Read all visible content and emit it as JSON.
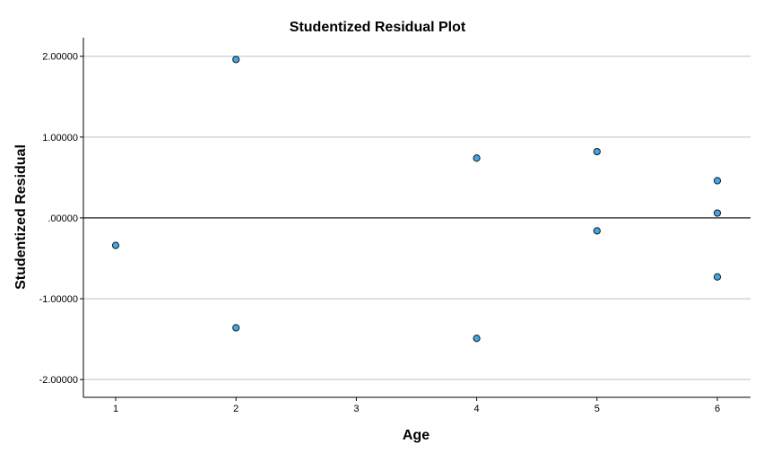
{
  "chart_data": {
    "type": "scatter",
    "title": "Studentized Residual Plot",
    "xlabel": "Age",
    "ylabel": "Studentized Residual",
    "x_categories": [
      "1",
      "2",
      "3",
      "4",
      "5",
      "6"
    ],
    "y_ticks": [
      {
        "value": 2,
        "label": "2.00000"
      },
      {
        "value": 1,
        "label": "1.00000"
      },
      {
        "value": 0,
        "label": ".00000"
      },
      {
        "value": -1,
        "label": "-1.00000"
      },
      {
        "value": -2,
        "label": "-2.00000"
      }
    ],
    "ylim": [
      -2.22,
      2.23
    ],
    "reference_line_y": 0,
    "grid": "horizontal",
    "marker_fill": "#3fa6e8",
    "marker_stroke": "#1a1a1a",
    "points": [
      {
        "x": "1",
        "y": -0.34
      },
      {
        "x": "2",
        "y": 1.96
      },
      {
        "x": "2",
        "y": -1.36
      },
      {
        "x": "4",
        "y": 0.74
      },
      {
        "x": "4",
        "y": -1.49
      },
      {
        "x": "5",
        "y": 0.82
      },
      {
        "x": "5",
        "y": -0.16
      },
      {
        "x": "6",
        "y": 0.46
      },
      {
        "x": "6",
        "y": 0.06
      },
      {
        "x": "6",
        "y": -0.73
      }
    ]
  }
}
